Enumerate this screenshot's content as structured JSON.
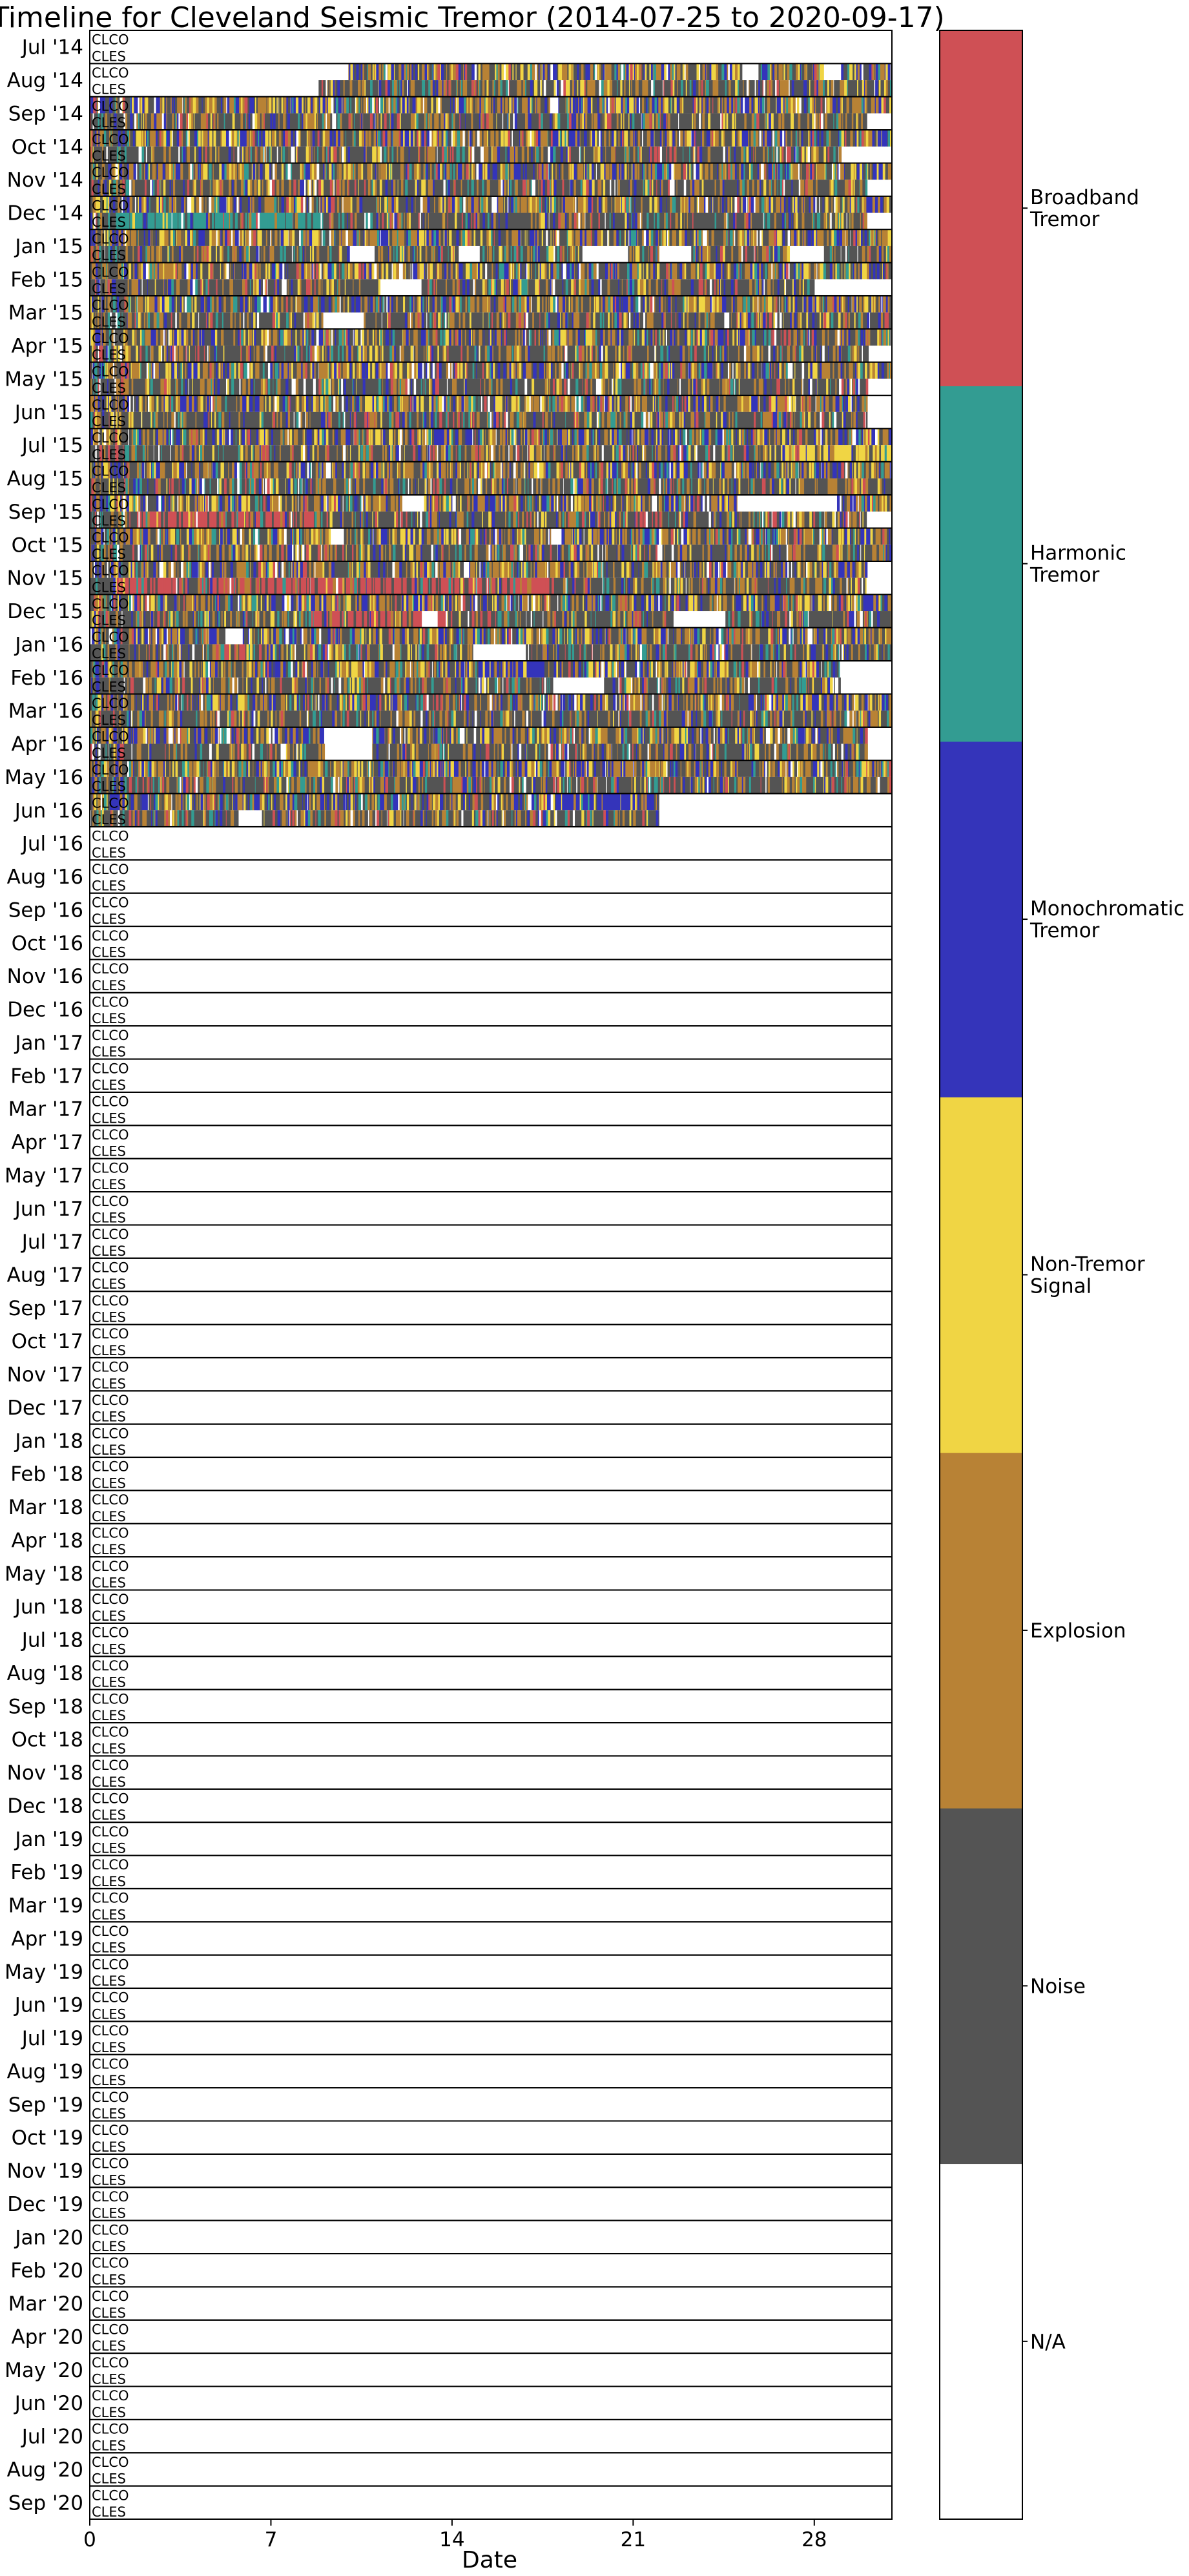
{
  "chart_data": {
    "type": "heatmap",
    "title": "Timeline for Cleveland Seismic Tremor (2014-07-25 to 2020-09-17)",
    "xlabel": "Date",
    "x_ticks": [
      "0",
      "7",
      "14",
      "21",
      "28"
    ],
    "x_tick_values": [
      0,
      7,
      14,
      21,
      28
    ],
    "xlim": [
      0,
      31
    ],
    "stations": [
      "CLCO",
      "CLES"
    ],
    "months": [
      "Jul '14",
      "Aug '14",
      "Sep '14",
      "Oct '14",
      "Nov '14",
      "Dec '14",
      "Jan '15",
      "Feb '15",
      "Mar '15",
      "Apr '15",
      "May '15",
      "Jun '15",
      "Jul '15",
      "Aug '15",
      "Sep '15",
      "Oct '15",
      "Nov '15",
      "Dec '15",
      "Jan '16",
      "Feb '16",
      "Mar '16",
      "Apr '16",
      "May '16",
      "Jun '16",
      "Jul '16",
      "Aug '16",
      "Sep '16",
      "Oct '16",
      "Nov '16",
      "Dec '16",
      "Jan '17",
      "Feb '17",
      "Mar '17",
      "Apr '17",
      "May '17",
      "Jun '17",
      "Jul '17",
      "Aug '17",
      "Sep '17",
      "Oct '17",
      "Nov '17",
      "Dec '17",
      "Jan '18",
      "Feb '18",
      "Mar '18",
      "Apr '18",
      "May '18",
      "Jun '18",
      "Jul '18",
      "Aug '18",
      "Sep '18",
      "Oct '18",
      "Nov '18",
      "Dec '18",
      "Jan '19",
      "Feb '19",
      "Mar '19",
      "Apr '19",
      "May '19",
      "Jun '19",
      "Jul '19",
      "Aug '19",
      "Sep '19",
      "Oct '19",
      "Nov '19",
      "Dec '19",
      "Jan '20",
      "Feb '20",
      "Mar '20",
      "Apr '20",
      "May '20",
      "Jun '20",
      "Jul '20",
      "Aug '20",
      "Sep '20"
    ],
    "days_in_month": [
      31,
      31,
      30,
      31,
      30,
      31,
      31,
      28,
      31,
      30,
      31,
      30,
      31,
      31,
      30,
      31,
      30,
      31,
      31,
      29,
      31,
      30,
      31,
      30,
      31,
      31,
      30,
      31,
      30,
      31,
      31,
      28,
      31,
      30,
      31,
      30,
      31,
      31,
      30,
      31,
      30,
      31,
      31,
      28,
      31,
      30,
      31,
      30,
      31,
      31,
      30,
      31,
      30,
      31,
      31,
      28,
      31,
      30,
      31,
      30,
      31,
      31,
      30,
      31,
      30,
      31,
      31,
      29,
      31,
      30,
      31,
      30,
      31,
      31,
      30
    ],
    "classes": [
      {
        "name": "N/A",
        "label": [
          "N/A"
        ],
        "color": "#ffffff"
      },
      {
        "name": "Noise",
        "label": [
          "Noise"
        ],
        "color": "#545454"
      },
      {
        "name": "Explosion",
        "label": [
          "Explosion"
        ],
        "color": "#b88235"
      },
      {
        "name": "Non-Tremor Signal",
        "label": [
          "Non-Tremor",
          "Signal"
        ],
        "color": "#f0d544"
      },
      {
        "name": "Monochromatic Tremor",
        "label": [
          "Monochromatic",
          "Tremor"
        ],
        "color": "#3434ba"
      },
      {
        "name": "Harmonic Tremor",
        "label": [
          "Harmonic",
          "Tremor"
        ],
        "color": "#339c92"
      },
      {
        "name": "Broadband Tremor",
        "label": [
          "Broadband",
          "Tremor"
        ],
        "color": "#cf5055"
      }
    ],
    "data_end": "2020-09-17",
    "classified_period": {
      "start": "2014-07-25",
      "end": "2016-06-22"
    },
    "gaps": [
      {
        "month": "Jul '14",
        "station": "CLCO",
        "start": 0,
        "end": 31
      },
      {
        "month": "Jul '14",
        "station": "CLES",
        "start": 0,
        "end": 31
      },
      {
        "month": "Aug '14",
        "station": "CLCO",
        "start": 0,
        "end": 9.9
      },
      {
        "month": "Aug '14",
        "station": "CLES",
        "start": 0,
        "end": 8.8
      },
      {
        "month": "Aug '14",
        "station": "CLCO",
        "start": 25.2,
        "end": 25.8
      },
      {
        "month": "Aug '14",
        "station": "CLCO",
        "start": 28.3,
        "end": 29.0
      },
      {
        "month": "Sep '14",
        "station": "CLES",
        "start": 30.0,
        "end": 31.0
      },
      {
        "month": "Sep '14",
        "station": "CLCO",
        "start": 17.8,
        "end": 18.1
      },
      {
        "month": "Oct '14",
        "station": "CLES",
        "start": 29.0,
        "end": 31.0
      },
      {
        "month": "Nov '14",
        "station": "CLES",
        "start": 30.0,
        "end": 31.0
      },
      {
        "month": "Dec '14",
        "station": "CLES",
        "start": 30.0,
        "end": 31.0
      },
      {
        "month": "Jan '15",
        "station": "CLES",
        "start": 10.0,
        "end": 11.0
      },
      {
        "month": "Jan '15",
        "station": "CLES",
        "start": 14.2,
        "end": 15.0
      },
      {
        "month": "Jan '15",
        "station": "CLES",
        "start": 19.0,
        "end": 20.8
      },
      {
        "month": "Jan '15",
        "station": "CLES",
        "start": 22.0,
        "end": 23.2
      },
      {
        "month": "Jan '15",
        "station": "CLES",
        "start": 27.0,
        "end": 28.3
      },
      {
        "month": "Feb '15",
        "station": "CLES",
        "start": 28.0,
        "end": 31.0
      },
      {
        "month": "Feb '15",
        "station": "CLES",
        "start": 11.2,
        "end": 12.8
      },
      {
        "month": "Mar '15",
        "station": "CLES",
        "start": 9.0,
        "end": 10.5
      },
      {
        "month": "Apr '15",
        "station": "CLES",
        "start": 30.0,
        "end": 31.0
      },
      {
        "month": "May '15",
        "station": "CLES",
        "start": 30.0,
        "end": 31.0
      },
      {
        "month": "Jun '15",
        "station": "CLES",
        "start": 30.0,
        "end": 31.0
      },
      {
        "month": "Jun '15",
        "station": "CLCO",
        "start": 30.0,
        "end": 31.0
      },
      {
        "month": "Sep '15",
        "station": "CLES",
        "start": 30.0,
        "end": 31.0
      },
      {
        "month": "Sep '15",
        "station": "CLCO",
        "start": 25.0,
        "end": 28.8
      },
      {
        "month": "Sep '15",
        "station": "CLCO",
        "start": 12.0,
        "end": 12.9
      },
      {
        "month": "Oct '15",
        "station": "CLCO",
        "start": 9.3,
        "end": 9.8
      },
      {
        "month": "Oct '15",
        "station": "CLCO",
        "start": 17.8,
        "end": 18.2
      },
      {
        "month": "Nov '15",
        "station": "CLES",
        "start": 30.0,
        "end": 31.0
      },
      {
        "month": "Nov '15",
        "station": "CLCO",
        "start": 30.0,
        "end": 31.0
      },
      {
        "month": "Dec '15",
        "station": "CLES",
        "start": 22.5,
        "end": 24.5
      },
      {
        "month": "Dec '15",
        "station": "CLES",
        "start": 12.8,
        "end": 13.4
      },
      {
        "month": "Jan '16",
        "station": "CLCO",
        "start": 5.2,
        "end": 5.9
      },
      {
        "month": "Jan '16",
        "station": "CLES",
        "start": 14.8,
        "end": 16.8
      },
      {
        "month": "Feb '16",
        "station": "CLES",
        "start": 17.9,
        "end": 19.8
      },
      {
        "month": "Feb '16",
        "station": "CLCO",
        "start": 29.0,
        "end": 31.0
      },
      {
        "month": "Feb '16",
        "station": "CLES",
        "start": 29.0,
        "end": 31.0
      },
      {
        "month": "Apr '16",
        "station": "CLCO",
        "start": 9.0,
        "end": 10.9
      },
      {
        "month": "Apr '16",
        "station": "CLES",
        "start": 9.0,
        "end": 10.9
      },
      {
        "month": "Apr '16",
        "station": "CLCO",
        "start": 30.0,
        "end": 31.0
      },
      {
        "month": "Apr '16",
        "station": "CLES",
        "start": 30.0,
        "end": 31.0
      },
      {
        "month": "Jun '16",
        "station": "CLES",
        "start": 5.7,
        "end": 6.6
      },
      {
        "month": "Jun '16",
        "station": "CLCO",
        "start": 22.4,
        "end": 31.0
      },
      {
        "month": "Jun '16",
        "station": "CLES",
        "start": 22.4,
        "end": 31.0
      }
    ],
    "highlights": [
      {
        "month": "Dec '14",
        "station": "CLES",
        "start": 1.0,
        "end": 9.0,
        "class": "Harmonic Tremor"
      },
      {
        "month": "Jul '15",
        "station": "CLES",
        "start": 26.0,
        "end": 31.0,
        "class": "Non-Tremor Signal"
      },
      {
        "month": "Sep '15",
        "station": "CLES",
        "start": 1.8,
        "end": 8.5,
        "class": "Broadband Tremor"
      },
      {
        "month": "Nov '15",
        "station": "CLES",
        "start": 1.0,
        "end": 18.0,
        "class": "Broadband Tremor"
      },
      {
        "month": "Dec '15",
        "station": "CLES",
        "start": 8.5,
        "end": 14.0,
        "class": "Broadband Tremor"
      },
      {
        "month": "Jan '16",
        "station": "CLES",
        "start": 4.8,
        "end": 6.0,
        "class": "Broadband Tremor"
      },
      {
        "month": "Feb '16",
        "station": "CLCO",
        "start": 15.0,
        "end": 17.5,
        "class": "Monochromatic Tremor"
      },
      {
        "month": "Jun '16",
        "station": "CLCO",
        "start": 18.0,
        "end": 22.4,
        "class": "Monochromatic Tremor"
      }
    ]
  }
}
